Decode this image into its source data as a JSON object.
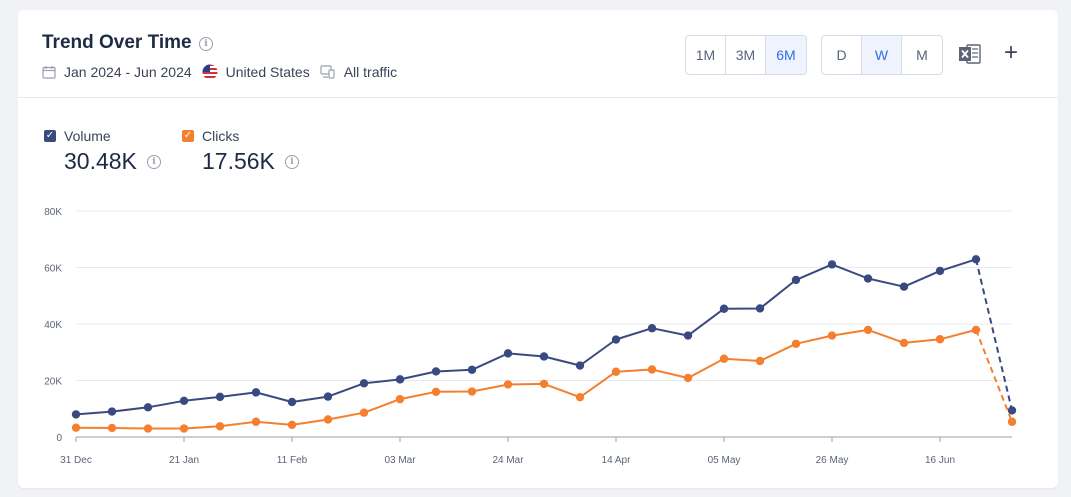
{
  "header": {
    "title": "Trend Over Time",
    "date_range": "Jan 2024 - Jun 2024",
    "country": "United States",
    "traffic": "All traffic"
  },
  "period_buttons": [
    {
      "label": "1M",
      "active": false
    },
    {
      "label": "3M",
      "active": false
    },
    {
      "label": "6M",
      "active": true
    }
  ],
  "granularity_buttons": [
    {
      "label": "D",
      "active": false
    },
    {
      "label": "W",
      "active": true
    },
    {
      "label": "M",
      "active": false
    }
  ],
  "icons": {
    "export": "excel-export-icon",
    "add": "plus-icon",
    "info": "info-icon",
    "calendar": "calendar-icon",
    "flag": "us-flag-icon",
    "device": "devices-icon"
  },
  "legend": [
    {
      "name": "Volume",
      "value": "30.48K",
      "color": "#3a4a80"
    },
    {
      "name": "Clicks",
      "value": "17.56K",
      "color": "#f47f2f"
    }
  ],
  "chart_data": {
    "type": "line",
    "x_tick_labels": [
      "31 Dec",
      "21 Jan",
      "11 Feb",
      "03 Mar",
      "24 Mar",
      "14 Apr",
      "05 May",
      "26 May",
      "16 Jun"
    ],
    "x": [
      "31 Dec",
      "07 Jan",
      "14 Jan",
      "21 Jan",
      "28 Jan",
      "04 Feb",
      "11 Feb",
      "18 Feb",
      "25 Feb",
      "03 Mar",
      "10 Mar",
      "17 Mar",
      "24 Mar",
      "31 Mar",
      "07 Apr",
      "14 Apr",
      "21 Apr",
      "28 Apr",
      "05 May",
      "12 May",
      "19 May",
      "26 May",
      "02 Jun",
      "09 Jun",
      "16 Jun",
      "23 Jun",
      "30 Jun"
    ],
    "series": [
      {
        "name": "Volume",
        "color": "#3a4a80",
        "values": [
          8000,
          9000,
          10500,
          12800,
          14200,
          15800,
          12400,
          14300,
          19000,
          20400,
          23200,
          23800,
          29600,
          28500,
          25300,
          34500,
          38500,
          35900,
          45400,
          45500,
          55600,
          61100,
          56100,
          53200,
          58800,
          62900,
          9400
        ],
        "dashed_last_segment": true
      },
      {
        "name": "Clicks",
        "color": "#f47f2f",
        "values": [
          3300,
          3200,
          3000,
          3000,
          3800,
          5400,
          4300,
          6200,
          8600,
          13400,
          16000,
          16100,
          18600,
          18800,
          14100,
          23100,
          23900,
          20900,
          27700,
          26900,
          33000,
          35900,
          37900,
          33300,
          34600,
          37900,
          5400
        ],
        "dashed_last_segment": true
      }
    ],
    "y_tick_labels": [
      "0",
      "20K",
      "40K",
      "60K",
      "80K"
    ],
    "ylim": [
      0,
      80000
    ],
    "grid": true
  }
}
